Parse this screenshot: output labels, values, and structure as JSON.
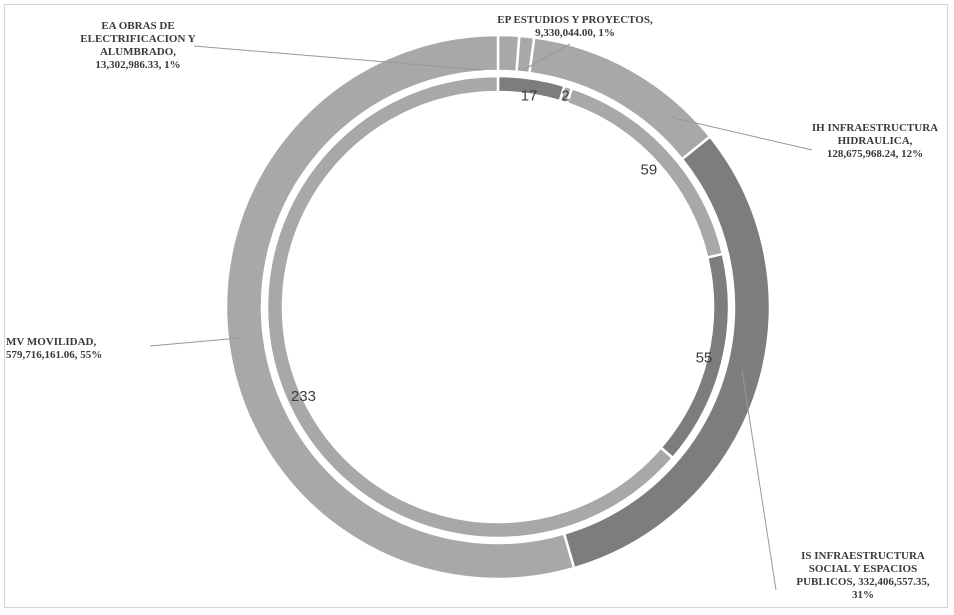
{
  "chart_data": {
    "type": "pie",
    "subtype": "double-donut",
    "title": "",
    "colors": {
      "background": "#ffffff",
      "ring_light": "#a8a8a8",
      "ring_dark": "#7d7d7d",
      "separator": "#ffffff",
      "label_text": "#3a3a3a",
      "leader_line": "#999999"
    },
    "outer_ring": {
      "slices": [
        {
          "code": "EA",
          "name_lines": [
            "EA OBRAS DE",
            "ELECTRIFICACION Y",
            "ALUMBRADO,"
          ],
          "value_text": "13,302,986.33,  1%",
          "value": 13302986.33,
          "percent": 1
        },
        {
          "code": "EP",
          "name_lines": [
            "EP ESTUDIOS Y PROYECTOS,"
          ],
          "value_text": "9,330,044.00,  1%",
          "value": 9330044.0,
          "percent": 1
        },
        {
          "code": "IH",
          "name_lines": [
            "IH INFRAESTRUCTURA",
            "HIDRAULICA,"
          ],
          "value_text": "128,675,968.24,  12%",
          "value": 128675968.24,
          "percent": 12
        },
        {
          "code": "IS",
          "name_lines": [
            "IS INFRAESTRUCTURA",
            "SOCIAL Y ESPACIOS"
          ],
          "value_text": "PUBLICOS, 332,406,557.35,",
          "value_text2": "31%",
          "value": 332406557.35,
          "percent": 31
        },
        {
          "code": "MV",
          "name_lines": [
            "MV MOVILIDAD,"
          ],
          "value_text": "579,716,161.06,  55%",
          "value": 579716161.06,
          "percent": 55
        }
      ]
    },
    "inner_ring": {
      "slices": [
        {
          "code": "EA",
          "value": 17,
          "label": "17"
        },
        {
          "code": "EP",
          "value": 2,
          "label": "2"
        },
        {
          "code": "IH",
          "value": 59,
          "label": "59"
        },
        {
          "code": "IS",
          "value": 55,
          "label": "55"
        },
        {
          "code": "MV",
          "value": 233,
          "label": "233"
        }
      ]
    }
  }
}
